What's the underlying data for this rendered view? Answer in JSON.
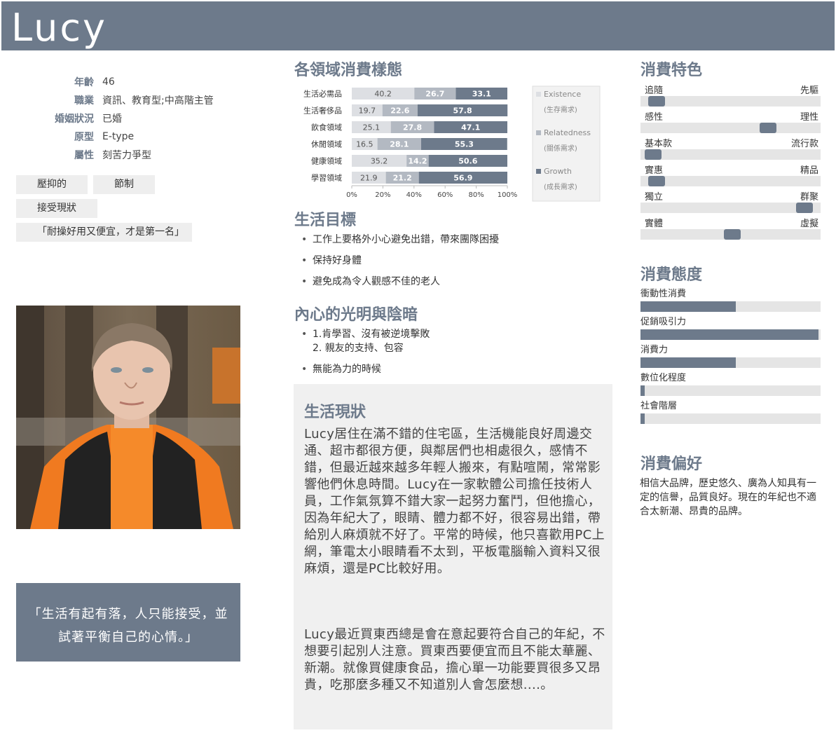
{
  "persona": {
    "name": "Lucy",
    "info": [
      {
        "label": "年齡",
        "value": "46"
      },
      {
        "label": "職業",
        "value": "資訊、教育型;中高階主管"
      },
      {
        "label": "婚姻狀況",
        "value": "已婚"
      },
      {
        "label": "原型",
        "value": "E-type"
      },
      {
        "label": "屬性",
        "value": "刻苦力爭型"
      }
    ],
    "tags": [
      "壓抑的",
      "節制",
      "接受現狀",
      "「耐操好用又便宜，才是第一名」"
    ],
    "quote_line1": "「生活有起有落，人只能接受，並",
    "quote_line2": "試著平衡自己的心情。」"
  },
  "headings": {
    "chart": "各領域消費樣態",
    "goals": "生活目標",
    "inner": "內心的光明與陰暗",
    "status": "生活現狀",
    "traits": "消費特色",
    "attitude": "消費態度",
    "preference": "消費偏好"
  },
  "goals": [
    "工作上要格外小心避免出錯，帶來團隊困擾",
    "保持好身體",
    "避免成為令人觀感不佳的老人"
  ],
  "inner": {
    "light_1": "1.肯學習、沒有被逆境擊敗",
    "light_2": "2. 親友的支持、包容",
    "dark": "無能為力的時候"
  },
  "status_text": {
    "p1": "Lucy居住在滿不錯的住宅區，生活機能良好周邊交通、超市都很方便，與鄰居們也相處很久，感情不錯，但最近越來越多年輕人搬來，有點喧鬧，常常影響他們休息時間。Lucy在一家軟體公司擔任技術人員，工作氣氛算不錯大家一起努力奮鬥，但他擔心，因為年紀大了，眼睛、體力都不好，很容易出錯，帶給別人麻煩就不好了。平常的時候，他只喜歡用PC上網，筆電太小眼睛看不太到，平板電腦輸入資料又很麻煩，還是PC比較好用。",
    "p2": "Lucy最近買東西總是會在意起要符合自己的年紀，不想要引起別人注意。買東西要便宜而且不能太華麗、新潮。就像買健康食品，擔心單一功能要買很多又昂貴，吃那麼多種又不知道別人會怎麼想....。"
  },
  "traits": [
    {
      "left": "追隨",
      "right": "先驅",
      "value": 0.09
    },
    {
      "left": "感性",
      "right": "理性",
      "value": 0.71
    },
    {
      "left": "基本款",
      "right": "流行款",
      "value": 0.07
    },
    {
      "left": "實惠",
      "right": "精品",
      "value": 0.09
    },
    {
      "left": "獨立",
      "right": "群聚",
      "value": 0.91
    },
    {
      "left": "實體",
      "right": "虛擬",
      "value": 0.51
    }
  ],
  "attitude": [
    {
      "label": "衝動性消費",
      "value": 0.53
    },
    {
      "label": "促銷吸引力",
      "value": 0.99
    },
    {
      "label": "消費力",
      "value": 0.53
    },
    {
      "label": "數位化程度",
      "value": 0.025
    },
    {
      "label": "社會階層",
      "value": 0.025
    }
  ],
  "preference_text": "相信大品牌，歷史悠久、廣為人知具有一定的信譽，品質良好。現在的年紀也不適合太新潮、昂貴的品牌。",
  "colors": {
    "accent": "#6d7a8b",
    "existence": "#dddfe3",
    "relatedness": "#b3b9c2",
    "growth": "#6d7a8b"
  },
  "chart_data": {
    "type": "bar",
    "orientation": "horizontal-stacked-100",
    "categories": [
      "生活必需品",
      "生活奢侈品",
      "飲食領域",
      "休閒領域",
      "健康領域",
      "學習領域"
    ],
    "series": [
      {
        "name": "Existence",
        "name2": "(生存需求)",
        "values": [
          40.2,
          19.7,
          25.1,
          16.5,
          35.2,
          21.9
        ]
      },
      {
        "name": "Relatedness",
        "name2": "(關係需求)",
        "values": [
          26.7,
          22.6,
          27.8,
          28.1,
          14.2,
          21.2
        ]
      },
      {
        "name": "Growth",
        "name2": "(成長需求)",
        "values": [
          33.1,
          57.8,
          47.1,
          55.3,
          50.6,
          56.9
        ]
      }
    ],
    "ticks": [
      "0%",
      "20%",
      "40%",
      "60%",
      "80%",
      "100%"
    ],
    "xlim": [
      0,
      100
    ],
    "legend": "right"
  }
}
